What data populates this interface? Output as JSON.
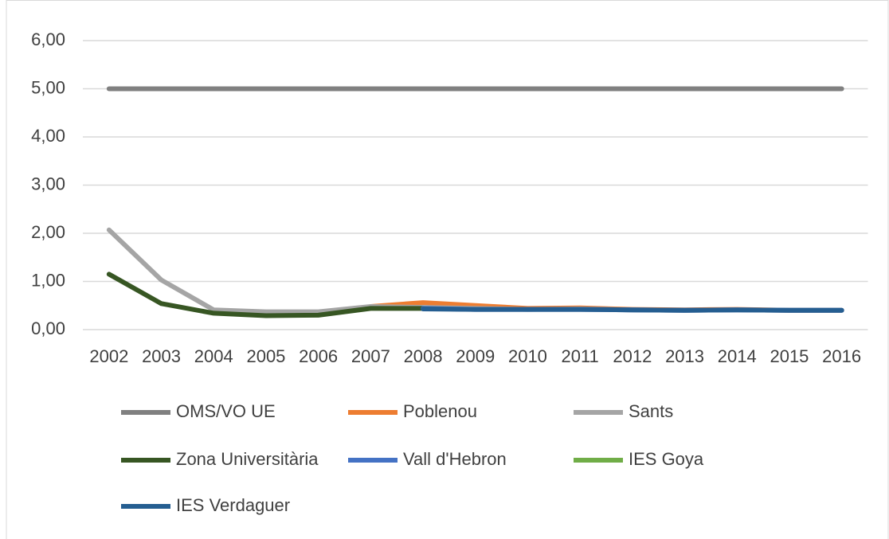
{
  "chart_data": {
    "type": "line",
    "categories": [
      "2002",
      "2003",
      "2004",
      "2005",
      "2006",
      "2007",
      "2008",
      "2009",
      "2010",
      "2011",
      "2012",
      "2013",
      "2014",
      "2015",
      "2016"
    ],
    "ylim": [
      0,
      6
    ],
    "yticks": [
      {
        "value": 0,
        "label": "0,00"
      },
      {
        "value": 1,
        "label": "1,00"
      },
      {
        "value": 2,
        "label": "2,00"
      },
      {
        "value": 3,
        "label": "3,00"
      },
      {
        "value": 4,
        "label": "4,00"
      },
      {
        "value": 5,
        "label": "5,00"
      },
      {
        "value": 6,
        "label": "6,00"
      }
    ],
    "grid": true,
    "legend": "bottom",
    "series": [
      {
        "name": "OMS/VO UE",
        "color": "#808080",
        "values": [
          5,
          5,
          5,
          5,
          5,
          5,
          5,
          5,
          5,
          5,
          5,
          5,
          5,
          5,
          5
        ]
      },
      {
        "name": "Poblenou",
        "color": "#ed7d31",
        "values": [
          null,
          null,
          null,
          null,
          null,
          0.48,
          0.56,
          0.5,
          0.44,
          0.45,
          0.42,
          0.41,
          0.42,
          0.4,
          0.4
        ]
      },
      {
        "name": "Sants",
        "color": "#a5a5a5",
        "values": [
          2.07,
          1.03,
          0.41,
          0.37,
          0.37,
          0.48,
          0.46,
          0.44,
          0.42,
          0.43,
          0.41,
          0.4,
          0.41,
          0.4,
          0.4
        ]
      },
      {
        "name": "Zona Universitària",
        "color": "#375623",
        "values": [
          1.15,
          0.54,
          0.34,
          0.29,
          0.3,
          0.44,
          0.44,
          null,
          null,
          null,
          null,
          null,
          null,
          null,
          null
        ]
      },
      {
        "name": "Vall d'Hebron",
        "color": "#4472c4",
        "values": [
          null,
          null,
          null,
          null,
          null,
          null,
          0.44,
          0.42,
          0.42,
          0.42,
          0.41,
          0.4,
          0.41,
          0.4,
          0.4
        ]
      },
      {
        "name": "IES Goya",
        "color": "#70ad47",
        "values": [
          null,
          null,
          null,
          null,
          null,
          null,
          null,
          null,
          null,
          null,
          null,
          null,
          null,
          null,
          null
        ]
      },
      {
        "name": "IES Verdaguer",
        "color": "#255e91",
        "values": [
          null,
          null,
          null,
          null,
          null,
          null,
          0.43,
          0.42,
          0.42,
          0.42,
          0.41,
          0.4,
          0.41,
          0.4,
          0.4
        ]
      }
    ]
  }
}
